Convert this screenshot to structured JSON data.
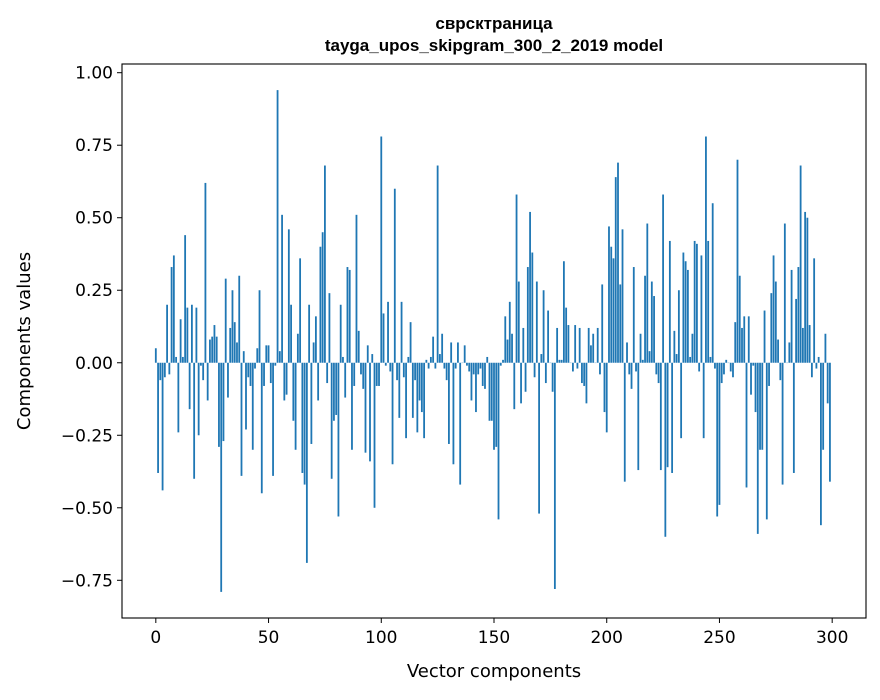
{
  "chart_data": {
    "type": "bar",
    "title_line1": "сврсктраница",
    "title_line2": "tayga_upos_skipgram_300_2_2019 model",
    "xlabel": "Vector components",
    "ylabel": "Components values",
    "xlim": [
      -15,
      315
    ],
    "ylim": [
      -0.88,
      1.03
    ],
    "xticks": [
      0,
      50,
      100,
      150,
      200,
      250,
      300
    ],
    "xtick_labels": [
      "0",
      "50",
      "100",
      "150",
      "200",
      "250",
      "300"
    ],
    "yticks": [
      -0.75,
      -0.5,
      -0.25,
      0,
      0.25,
      0.5,
      0.75,
      1.0
    ],
    "ytick_labels": [
      "−0.75",
      "−0.50",
      "−0.25",
      "0.00",
      "0.25",
      "0.50",
      "0.75",
      "1.00"
    ],
    "bar_color": "#1f77b4",
    "grid": false,
    "values": [
      0.05,
      -0.38,
      -0.06,
      -0.44,
      -0.05,
      0.2,
      -0.04,
      0.33,
      0.37,
      0.02,
      -0.24,
      0.15,
      0.02,
      0.44,
      0.19,
      -0.16,
      0.2,
      -0.4,
      0.19,
      -0.25,
      -0.01,
      -0.06,
      0.62,
      -0.13,
      0.08,
      0.09,
      0.13,
      0.09,
      -0.29,
      -0.79,
      -0.27,
      0.29,
      -0.12,
      0.12,
      0.25,
      0.14,
      0.07,
      0.3,
      -0.39,
      0.04,
      -0.23,
      -0.05,
      -0.08,
      -0.3,
      -0.02,
      0.05,
      0.25,
      -0.45,
      -0.08,
      0.06,
      0.06,
      -0.07,
      -0.39,
      -0.01,
      0.94,
      0.04,
      0.51,
      -0.13,
      -0.11,
      0.46,
      0.2,
      -0.2,
      -0.3,
      0.1,
      0.36,
      -0.38,
      -0.42,
      -0.69,
      0.2,
      -0.28,
      0.07,
      0.16,
      -0.13,
      0.4,
      0.45,
      0.68,
      -0.07,
      0.24,
      -0.4,
      -0.2,
      -0.18,
      -0.53,
      0.2,
      0.02,
      -0.12,
      0.33,
      0.32,
      -0.3,
      -0.08,
      0.51,
      0.11,
      -0.04,
      -0.09,
      -0.31,
      0.06,
      -0.34,
      0.03,
      -0.5,
      -0.08,
      -0.08,
      0.78,
      0.17,
      -0.01,
      0.21,
      -0.03,
      -0.35,
      0.6,
      -0.06,
      -0.19,
      0.21,
      -0.05,
      -0.26,
      0.02,
      0.14,
      -0.19,
      -0.06,
      -0.24,
      -0.13,
      -0.17,
      -0.26,
      0.01,
      -0.02,
      0.02,
      0.09,
      -0.02,
      0.68,
      0.03,
      0.1,
      -0.02,
      -0.06,
      -0.28,
      0.07,
      -0.35,
      -0.02,
      0.07,
      -0.42,
      0.0,
      0.06,
      -0.01,
      -0.03,
      -0.13,
      -0.04,
      -0.17,
      -0.04,
      -0.02,
      -0.08,
      -0.09,
      0.02,
      -0.2,
      -0.2,
      -0.3,
      -0.29,
      -0.54,
      -0.01,
      0.01,
      0.16,
      0.08,
      0.21,
      0.1,
      -0.16,
      0.58,
      0.28,
      -0.14,
      0.12,
      -0.1,
      0.33,
      0.52,
      0.38,
      -0.05,
      0.28,
      -0.52,
      0.03,
      0.25,
      -0.07,
      0.18,
      0.0,
      -0.1,
      -0.78,
      0.12,
      0.01,
      0.01,
      0.35,
      0.19,
      0.13,
      0.0,
      -0.03,
      0.13,
      -0.02,
      0.12,
      -0.07,
      -0.08,
      -0.14,
      0.12,
      0.06,
      0.1,
      0.0,
      0.12,
      -0.04,
      0.27,
      -0.17,
      -0.24,
      0.47,
      0.4,
      0.36,
      0.64,
      0.69,
      0.27,
      0.46,
      -0.41,
      0.07,
      -0.04,
      -0.09,
      0.33,
      -0.03,
      -0.37,
      0.1,
      0.01,
      0.3,
      0.48,
      0.04,
      0.28,
      0.23,
      -0.04,
      -0.07,
      -0.37,
      0.58,
      -0.6,
      -0.36,
      0.42,
      -0.38,
      0.11,
      0.03,
      0.25,
      -0.26,
      0.38,
      0.35,
      0.32,
      0.02,
      0.1,
      0.42,
      0.41,
      -0.03,
      0.37,
      -0.26,
      0.78,
      0.42,
      0.02,
      0.55,
      -0.02,
      -0.53,
      -0.49,
      -0.07,
      -0.04,
      0.01,
      0.0,
      -0.03,
      -0.05,
      0.14,
      0.7,
      0.3,
      0.12,
      0.16,
      -0.43,
      0.16,
      -0.11,
      -0.01,
      -0.17,
      -0.59,
      -0.3,
      -0.3,
      0.18,
      -0.54,
      -0.08,
      0.24,
      0.37,
      0.28,
      0.08,
      -0.06,
      -0.42,
      0.48,
      0.0,
      0.07,
      0.32,
      -0.38,
      0.22,
      0.33,
      0.68,
      0.12,
      0.52,
      0.5,
      0.13,
      -0.05,
      0.36,
      -0.02,
      0.02,
      -0.56,
      -0.3,
      0.1,
      -0.14,
      -0.41
    ]
  }
}
